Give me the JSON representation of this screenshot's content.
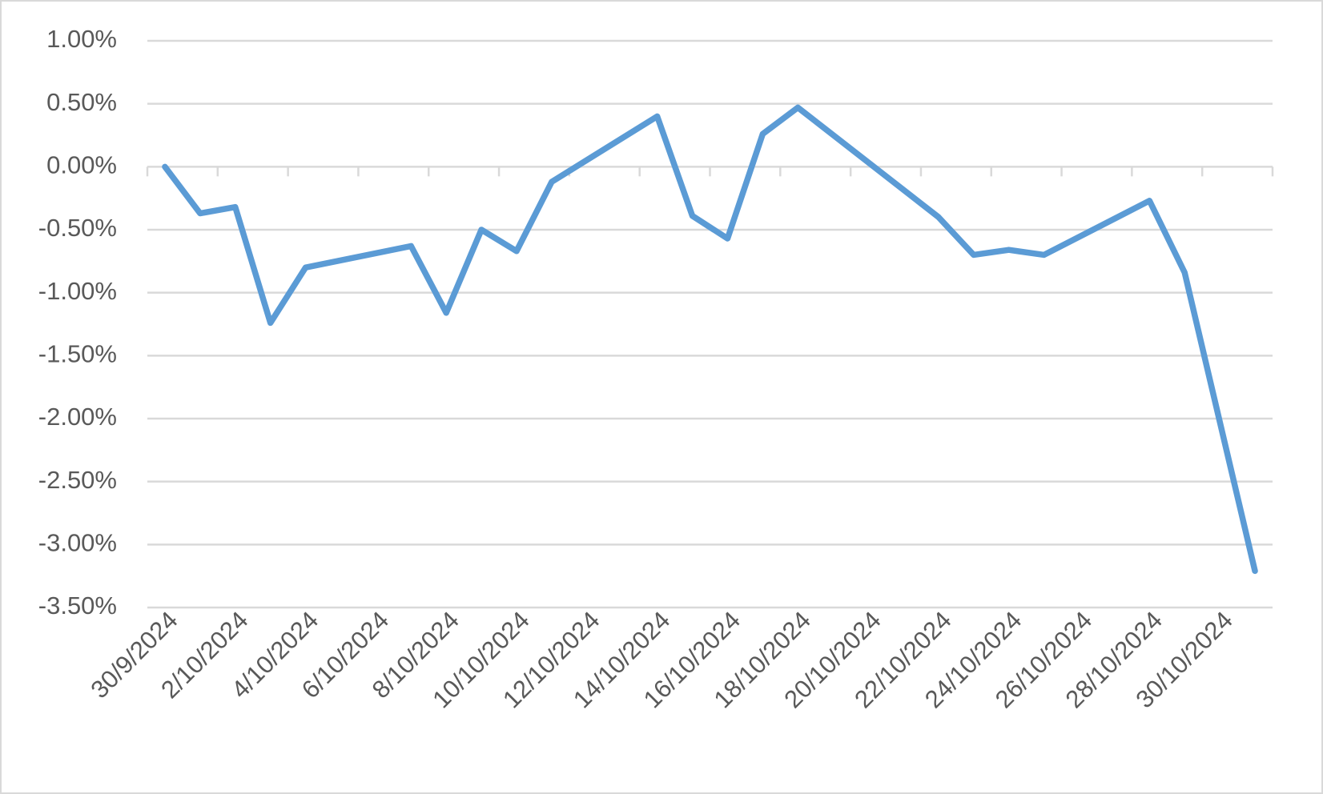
{
  "chart_data": {
    "type": "line",
    "x": [
      "30/9/2024",
      "1/10/2024",
      "2/10/2024",
      "3/10/2024",
      "4/10/2024",
      "7/10/2024",
      "8/10/2024",
      "9/10/2024",
      "10/10/2024",
      "11/10/2024",
      "14/10/2024",
      "15/10/2024",
      "16/10/2024",
      "17/10/2024",
      "18/10/2024",
      "22/10/2024",
      "23/10/2024",
      "24/10/2024",
      "25/10/2024",
      "28/10/2024",
      "29/10/2024",
      "31/10/2024"
    ],
    "series": [
      {
        "color": "#5b9bd5",
        "values": [
          0.0,
          -0.37,
          -0.32,
          -1.24,
          -0.8,
          -0.63,
          -1.16,
          -0.5,
          -0.67,
          -0.12,
          0.4,
          -0.39,
          -0.57,
          0.26,
          0.47,
          -0.4,
          -0.7,
          -0.66,
          -0.7,
          -0.27,
          -0.84,
          -3.21
        ]
      }
    ],
    "xlim": [
      "30/9/2024",
      "31/10/2024"
    ],
    "xticks": [
      "30/9/2024",
      "2/10/2024",
      "4/10/2024",
      "6/10/2024",
      "8/10/2024",
      "10/10/2024",
      "12/10/2024",
      "14/10/2024",
      "16/10/2024",
      "18/10/2024",
      "20/10/2024",
      "22/10/2024",
      "24/10/2024",
      "26/10/2024",
      "28/10/2024",
      "30/10/2024"
    ],
    "ylim": [
      -3.5,
      1
    ],
    "yticks": [
      {
        "value": 1,
        "label": "1.00%"
      },
      {
        "value": 0.5,
        "label": "0.50%"
      },
      {
        "value": 0,
        "label": "0.00%"
      },
      {
        "value": -0.5,
        "label": "-0.50%"
      },
      {
        "value": -1,
        "label": "-1.00%"
      },
      {
        "value": -1.5,
        "label": "-1.50%"
      },
      {
        "value": -2,
        "label": "-2.00%"
      },
      {
        "value": -2.5,
        "label": "-2.50%"
      },
      {
        "value": -3,
        "label": "-3.00%"
      },
      {
        "value": -3.5,
        "label": "-3.50%"
      }
    ],
    "grid": true
  }
}
